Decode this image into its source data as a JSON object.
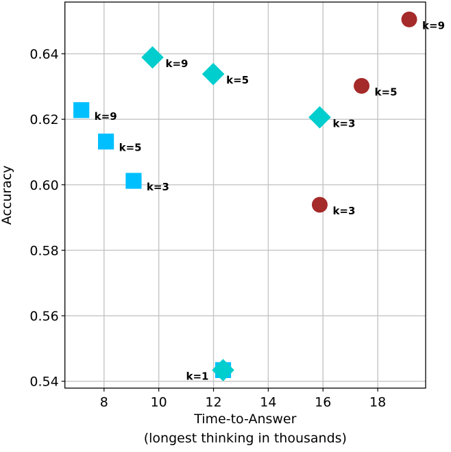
{
  "chart_data": {
    "type": "scatter",
    "title": "",
    "xlabel": "Time-to-Answer",
    "xlabel_line2": "(longest thinking in thousands)",
    "ylabel": "Accuracy",
    "xlim": [
      6.57,
      19.75
    ],
    "ylim": [
      0.5379,
      0.6558
    ],
    "xticks": [
      8,
      10,
      12,
      14,
      16,
      18
    ],
    "xtick_labels": [
      "8",
      "10",
      "12",
      "14",
      "16",
      "18"
    ],
    "yticks": [
      0.54,
      0.56,
      0.58,
      0.6,
      0.62,
      0.64
    ],
    "ytick_labels": [
      "0.54",
      "0.56",
      "0.58",
      "0.60",
      "0.62",
      "0.64"
    ],
    "grid": true,
    "legend": null,
    "series": [
      {
        "name": "square-series",
        "marker": "square",
        "color": "#00bfff",
        "points": [
          {
            "x": 7.17,
            "y": 0.6228,
            "label": "k=9",
            "label_side": "right"
          },
          {
            "x": 8.07,
            "y": 0.6132,
            "label": "k=5",
            "label_side": "right"
          },
          {
            "x": 9.08,
            "y": 0.6012,
            "label": "k=3",
            "label_side": "right"
          },
          {
            "x": 12.35,
            "y": 0.5434,
            "label": "",
            "label_side": "none"
          }
        ]
      },
      {
        "name": "circle-series",
        "marker": "circle",
        "color": "#a52a2a",
        "points": [
          {
            "x": 19.15,
            "y": 0.6505,
            "label": "k=9",
            "label_side": "right"
          },
          {
            "x": 17.41,
            "y": 0.6302,
            "label": "k=5",
            "label_side": "right"
          },
          {
            "x": 15.88,
            "y": 0.5939,
            "label": "k=3",
            "label_side": "right"
          }
        ]
      },
      {
        "name": "diamond-series",
        "marker": "diamond",
        "color": "#00cdcd",
        "points": [
          {
            "x": 9.77,
            "y": 0.6389,
            "label": "k=9",
            "label_side": "right"
          },
          {
            "x": 11.99,
            "y": 0.6338,
            "label": "k=5",
            "label_side": "right"
          },
          {
            "x": 15.88,
            "y": 0.6206,
            "label": "k=3",
            "label_side": "right"
          },
          {
            "x": 12.35,
            "y": 0.5434,
            "label": "k=1",
            "label_side": "left"
          }
        ]
      }
    ]
  }
}
